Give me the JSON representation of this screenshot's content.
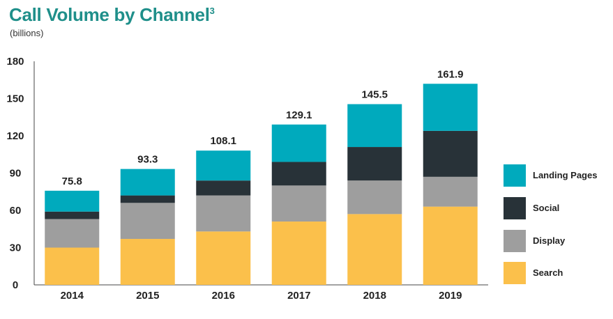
{
  "title": "Call Volume by Channel",
  "title_superscript": "3",
  "subtitle": "(billions)",
  "colors": {
    "Search": "#fbc04b",
    "Display": "#9e9e9e",
    "Social": "#283238",
    "Landing Pages": "#00aabd",
    "title": "#1f8f8a",
    "axis": "#444444",
    "text": "#222222"
  },
  "legend": [
    {
      "label": "Landing Pages",
      "color": "#00aabd"
    },
    {
      "label": "Social",
      "color": "#283238"
    },
    {
      "label": "Display",
      "color": "#9e9e9e"
    },
    {
      "label": "Search",
      "color": "#fbc04b"
    }
  ],
  "chart_data": {
    "type": "bar",
    "stacked": true,
    "title": "Call Volume by Channel",
    "subtitle": "(billions)",
    "categories": [
      "2014",
      "2015",
      "2016",
      "2017",
      "2018",
      "2019"
    ],
    "series": [
      {
        "name": "Search",
        "values": [
          30,
          37,
          43,
          51,
          57,
          63
        ]
      },
      {
        "name": "Display",
        "values": [
          23,
          29,
          29,
          29,
          27,
          24
        ]
      },
      {
        "name": "Social",
        "values": [
          6,
          6,
          12,
          19,
          27,
          37
        ]
      },
      {
        "name": "Landing Pages",
        "values": [
          16.8,
          21.3,
          24.1,
          30.1,
          34.5,
          37.9
        ]
      }
    ],
    "totals": [
      "75.8",
      "93.3",
      "108.1",
      "129.1",
      "145.5",
      "161.9"
    ],
    "ylim": [
      0,
      180
    ],
    "yticks": [
      "0",
      "30",
      "60",
      "90",
      "120",
      "150",
      "180"
    ],
    "xlabel": "",
    "ylabel": "",
    "grid": false,
    "legend_position": "right"
  }
}
